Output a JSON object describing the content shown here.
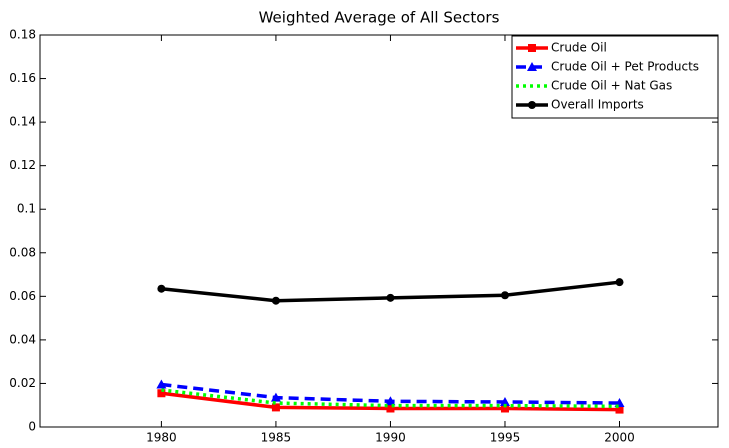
{
  "chart_data": {
    "type": "line",
    "title": "Weighted Average of All Sectors",
    "x": [
      1980,
      1985,
      1990,
      1995,
      2000
    ],
    "series": [
      {
        "name": "Crude Oil",
        "color": "#ff0000",
        "dash": "solid",
        "marker": "square",
        "values": [
          0.0155,
          0.009,
          0.0085,
          0.0085,
          0.008
        ]
      },
      {
        "name": "Crude Oil + Pet Products",
        "color": "#0000ff",
        "dash": "dashed",
        "marker": "triangle",
        "values": [
          0.0195,
          0.0135,
          0.0118,
          0.0115,
          0.011
        ]
      },
      {
        "name": "Crude Oil + Nat Gas",
        "color": "#00ff00",
        "dash": "dotted",
        "marker": "none",
        "values": [
          0.017,
          0.011,
          0.0098,
          0.0098,
          0.0095
        ]
      },
      {
        "name": "Overall Imports",
        "color": "#000000",
        "dash": "solid",
        "marker": "circle",
        "values": [
          0.0635,
          0.058,
          0.0593,
          0.0605,
          0.0665
        ]
      }
    ],
    "xlim": [
      1974.7,
      2004.3
    ],
    "xticks": [
      1980,
      1985,
      1990,
      1995,
      2000
    ],
    "ylim": [
      0,
      0.18
    ],
    "yticks": [
      0,
      0.02,
      0.04,
      0.06,
      0.08,
      0.1,
      0.12,
      0.14,
      0.16,
      0.18
    ],
    "grid": false,
    "legend": "upper right"
  }
}
